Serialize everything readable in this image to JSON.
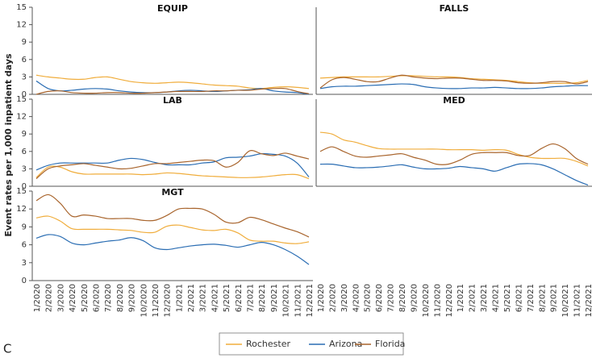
{
  "figure_label": "C",
  "chart_data": [
    {
      "type": "line",
      "title": "EQUIP",
      "ylabel": "Event rates per 1,000 inpatient days",
      "column": "left",
      "row": 0,
      "categories": [
        "1/2020",
        "2/2020",
        "3/2020",
        "4/2020",
        "5/2020",
        "6/2020",
        "7/2020",
        "8/2020",
        "9/2020",
        "10/2020",
        "11/2020",
        "12/2020",
        "1/2021",
        "2/2021",
        "3/2021",
        "4/2021",
        "5/2021",
        "6/2021",
        "7/2021",
        "8/2021",
        "9/2021",
        "10/2021",
        "11/2021",
        "12/2021"
      ],
      "ylim": [
        0,
        15
      ],
      "yticks": [
        0,
        3,
        6,
        9,
        12,
        15
      ],
      "series": [
        {
          "name": "Rochester",
          "color": "#f0ad3c",
          "values": [
            3.3,
            3.0,
            2.8,
            2.6,
            2.6,
            2.9,
            3.0,
            2.6,
            2.2,
            2.0,
            1.9,
            2.0,
            2.1,
            2.0,
            1.8,
            1.6,
            1.5,
            1.4,
            1.1,
            1.0,
            1.2,
            1.3,
            1.2,
            1.0
          ]
        },
        {
          "name": "Arizona",
          "color": "#2a6db3",
          "values": [
            2.3,
            1.0,
            0.6,
            0.7,
            0.9,
            1.0,
            0.9,
            0.6,
            0.4,
            0.3,
            0.3,
            0.4,
            0.6,
            0.7,
            0.6,
            0.5,
            0.6,
            0.7,
            0.8,
            1.0,
            0.6,
            0.4,
            0.3,
            0.0
          ]
        },
        {
          "name": "Florida",
          "color": "#a8642c",
          "values": [
            0.0,
            0.5,
            0.6,
            0.3,
            0.2,
            0.2,
            0.3,
            0.3,
            0.2,
            0.2,
            0.3,
            0.4,
            0.5,
            0.5,
            0.5,
            0.6,
            0.6,
            0.7,
            0.7,
            0.9,
            1.0,
            1.0,
            0.5,
            0.1
          ]
        }
      ]
    },
    {
      "type": "line",
      "title": "FALLS",
      "column": "right",
      "row": 0,
      "categories": [
        "1/2020",
        "2/2020",
        "3/2020",
        "4/2020",
        "5/2020",
        "6/2020",
        "7/2020",
        "8/2020",
        "9/2020",
        "10/2020",
        "11/2020",
        "12/2020",
        "1/2021",
        "2/2021",
        "3/2021",
        "4/2021",
        "5/2021",
        "6/2021",
        "7/2021",
        "8/2021",
        "9/2021",
        "10/2021",
        "11/2021",
        "12/2021"
      ],
      "ylim": [
        0,
        15
      ],
      "series": [
        {
          "name": "Rochester",
          "color": "#f0ad3c",
          "values": [
            2.8,
            2.9,
            3.0,
            3.0,
            3.0,
            3.0,
            3.1,
            3.2,
            3.2,
            3.1,
            3.0,
            3.0,
            2.9,
            2.7,
            2.6,
            2.5,
            2.4,
            2.2,
            2.0,
            1.9,
            1.9,
            1.9,
            2.0,
            2.4
          ]
        },
        {
          "name": "Arizona",
          "color": "#2a6db3",
          "values": [
            1.0,
            1.3,
            1.4,
            1.4,
            1.5,
            1.6,
            1.7,
            1.8,
            1.7,
            1.3,
            1.1,
            1.0,
            1.0,
            1.1,
            1.1,
            1.2,
            1.1,
            1.0,
            1.0,
            1.1,
            1.3,
            1.4,
            1.5,
            1.5
          ]
        },
        {
          "name": "Florida",
          "color": "#a8642c",
          "values": [
            1.1,
            2.5,
            2.9,
            2.6,
            2.2,
            2.2,
            2.8,
            3.3,
            3.0,
            2.8,
            2.7,
            2.8,
            2.8,
            2.6,
            2.4,
            2.4,
            2.3,
            2.0,
            1.9,
            2.0,
            2.2,
            2.2,
            1.8,
            2.2
          ]
        }
      ]
    },
    {
      "type": "line",
      "title": "LAB",
      "column": "left",
      "row": 1,
      "categories": [
        "1/2020",
        "2/2020",
        "3/2020",
        "4/2020",
        "5/2020",
        "6/2020",
        "7/2020",
        "8/2020",
        "9/2020",
        "10/2020",
        "11/2020",
        "12/2020",
        "1/2021",
        "2/2021",
        "3/2021",
        "4/2021",
        "5/2021",
        "6/2021",
        "7/2021",
        "8/2021",
        "9/2021",
        "10/2021",
        "11/2021",
        "12/2021"
      ],
      "ylim": [
        0,
        15
      ],
      "yticks": [
        0,
        3,
        6,
        9,
        12,
        15
      ],
      "series": [
        {
          "name": "Rochester",
          "color": "#f0ad3c",
          "values": [
            1.5,
            3.3,
            3.3,
            2.5,
            2.1,
            2.1,
            2.1,
            2.1,
            2.1,
            2.0,
            2.1,
            2.3,
            2.2,
            2.0,
            1.8,
            1.7,
            1.6,
            1.5,
            1.5,
            1.6,
            1.8,
            2.0,
            2.0,
            1.3
          ]
        },
        {
          "name": "Arizona",
          "color": "#2a6db3",
          "values": [
            2.8,
            3.6,
            4.0,
            4.0,
            4.0,
            4.0,
            4.0,
            4.5,
            4.8,
            4.6,
            4.1,
            3.7,
            3.7,
            3.7,
            4.0,
            4.2,
            4.9,
            5.0,
            5.2,
            5.6,
            5.5,
            5.2,
            4.0,
            1.6
          ]
        },
        {
          "name": "Florida",
          "color": "#a8642c",
          "values": [
            1.3,
            3.0,
            3.5,
            3.7,
            3.9,
            3.6,
            3.3,
            3.0,
            3.1,
            3.5,
            3.9,
            3.9,
            4.1,
            4.3,
            4.5,
            4.4,
            3.3,
            4.1,
            6.1,
            5.6,
            5.3,
            5.7,
            5.2,
            4.7
          ]
        }
      ]
    },
    {
      "type": "line",
      "title": "MED",
      "column": "right",
      "row": 1,
      "categories": [
        "1/2020",
        "2/2020",
        "3/2020",
        "4/2020",
        "5/2020",
        "6/2020",
        "7/2020",
        "8/2020",
        "9/2020",
        "10/2020",
        "11/2020",
        "12/2020",
        "1/2021",
        "2/2021",
        "3/2021",
        "4/2021",
        "5/2021",
        "6/2021",
        "7/2021",
        "8/2021",
        "9/2021",
        "10/2021",
        "11/2021",
        "12/2021"
      ],
      "ylim": [
        0,
        15
      ],
      "series": [
        {
          "name": "Rochester",
          "color": "#f0ad3c",
          "values": [
            9.3,
            9.0,
            8.0,
            7.6,
            7.0,
            6.5,
            6.4,
            6.4,
            6.4,
            6.4,
            6.4,
            6.3,
            6.3,
            6.3,
            6.2,
            6.3,
            6.2,
            5.5,
            5.0,
            4.8,
            4.8,
            4.8,
            4.3,
            3.5
          ]
        },
        {
          "name": "Arizona",
          "color": "#2a6db3",
          "values": [
            3.8,
            3.8,
            3.5,
            3.2,
            3.2,
            3.3,
            3.5,
            3.7,
            3.3,
            3.0,
            3.0,
            3.1,
            3.4,
            3.2,
            3.0,
            2.6,
            3.2,
            3.8,
            3.9,
            3.7,
            3.0,
            2.0,
            1.0,
            0.2
          ]
        },
        {
          "name": "Florida",
          "color": "#a8642c",
          "values": [
            6.0,
            6.8,
            6.0,
            5.2,
            5.0,
            5.2,
            5.4,
            5.6,
            5.0,
            4.5,
            3.8,
            3.8,
            4.5,
            5.5,
            5.8,
            5.8,
            5.8,
            5.3,
            5.3,
            6.5,
            7.3,
            6.5,
            4.8,
            3.8
          ]
        }
      ]
    },
    {
      "type": "line",
      "title": "MGT",
      "column": "left",
      "row": 2,
      "categories": [
        "1/2020",
        "2/2020",
        "3/2020",
        "4/2020",
        "5/2020",
        "6/2020",
        "7/2020",
        "8/2020",
        "9/2020",
        "10/2020",
        "11/2020",
        "12/2020",
        "1/2021",
        "2/2021",
        "3/2021",
        "4/2021",
        "5/2021",
        "6/2021",
        "7/2021",
        "8/2021",
        "9/2021",
        "10/2021",
        "11/2021",
        "12/2021"
      ],
      "ylim": [
        0,
        15
      ],
      "yticks": [
        0,
        3,
        6,
        9,
        12,
        15
      ],
      "series": [
        {
          "name": "Rochester",
          "color": "#f0ad3c",
          "values": [
            10.5,
            10.8,
            10.0,
            8.7,
            8.6,
            8.6,
            8.6,
            8.5,
            8.4,
            8.1,
            8.1,
            9.1,
            9.3,
            8.9,
            8.5,
            8.4,
            8.6,
            8.0,
            6.8,
            6.6,
            6.6,
            6.3,
            6.2,
            6.5
          ]
        },
        {
          "name": "Arizona",
          "color": "#2a6db3",
          "values": [
            7.1,
            7.7,
            7.4,
            6.3,
            6.0,
            6.3,
            6.6,
            6.8,
            7.2,
            6.7,
            5.5,
            5.2,
            5.5,
            5.8,
            6.0,
            6.1,
            5.9,
            5.6,
            6.0,
            6.4,
            6.0,
            5.2,
            4.1,
            2.7
          ]
        },
        {
          "name": "Florida",
          "color": "#a8642c",
          "values": [
            13.4,
            14.4,
            13.0,
            10.8,
            11.0,
            10.8,
            10.4,
            10.4,
            10.4,
            10.1,
            10.1,
            10.9,
            12.0,
            12.1,
            12.0,
            11.1,
            9.8,
            9.7,
            10.6,
            10.2,
            9.5,
            8.8,
            8.2,
            7.3
          ]
        }
      ]
    }
  ]
}
